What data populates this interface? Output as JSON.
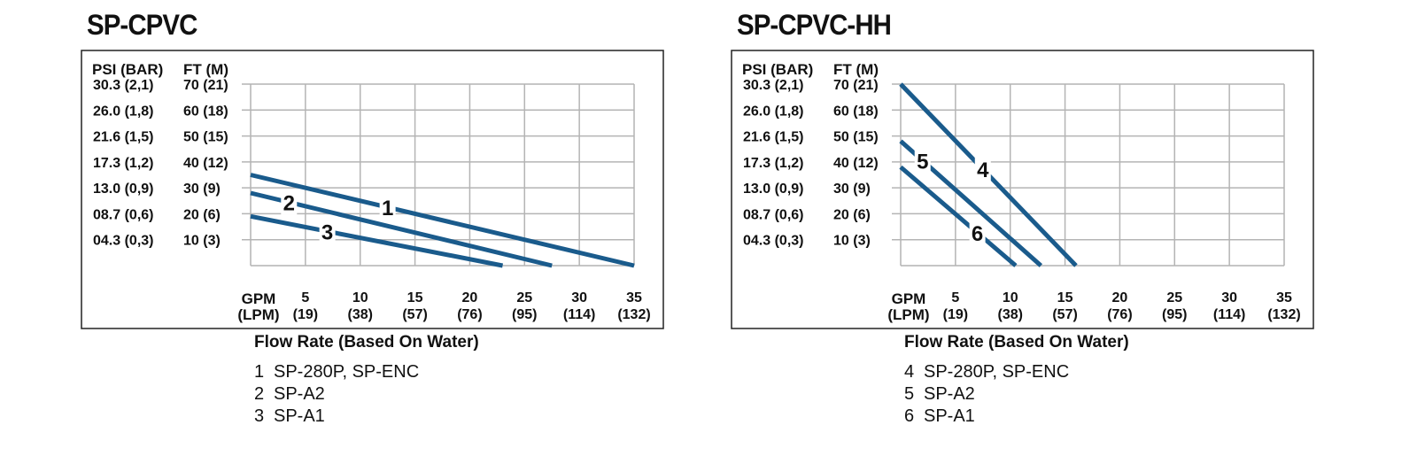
{
  "colors": {
    "line": "#1a5b8c",
    "grid": "#b4b4b4",
    "frame": "#222222"
  },
  "axes": {
    "left_header": "PSI (BAR)",
    "right_header": "FT (M)",
    "y_left_labels": [
      "30.3 (2,1)",
      "26.0 (1,8)",
      "21.6 (1,5)",
      "17.3 (1,2)",
      "13.0 (0,9)",
      "08.7 (0,6)",
      "04.3 (0,3)"
    ],
    "y_right_labels": [
      "70 (21)",
      "60 (18)",
      "50 (15)",
      "40 (12)",
      "30 (9)",
      "20 (6)",
      "10 (3)"
    ],
    "x_unit_top": "GPM",
    "x_unit_bottom": "(LPM)",
    "x_top_labels": [
      "5",
      "10",
      "15",
      "20",
      "25",
      "30",
      "35"
    ],
    "x_bottom_labels": [
      "(19)",
      "(38)",
      "(57)",
      "(76)",
      "(95)",
      "(114)",
      "(132)"
    ]
  },
  "chart_data": [
    {
      "type": "line",
      "title": "SP-CPVC",
      "xlabel": "Flow Rate (Based On Water)",
      "ylabel": "FT (M)",
      "x_ticks": [
        5,
        10,
        15,
        20,
        25,
        30,
        35
      ],
      "y_ticks": [
        10,
        20,
        30,
        40,
        50,
        60,
        70
      ],
      "xlim": [
        0,
        35
      ],
      "ylim": [
        0,
        70
      ],
      "grid": true,
      "series": [
        {
          "label": "1",
          "name": "SP-280P, SP-ENC",
          "x": [
            0,
            35
          ],
          "y": [
            35,
            0
          ],
          "label_at": 12.5
        },
        {
          "label": "2",
          "name": "SP-A2",
          "x": [
            0,
            27.5
          ],
          "y": [
            28,
            0
          ],
          "label_at": 3.5
        },
        {
          "label": "3",
          "name": "SP-A1",
          "x": [
            0,
            23
          ],
          "y": [
            19,
            0
          ],
          "label_at": 7
        }
      ]
    },
    {
      "type": "line",
      "title": "SP-CPVC-HH",
      "xlabel": "Flow Rate (Based On Water)",
      "ylabel": "FT (M)",
      "x_ticks": [
        5,
        10,
        15,
        20,
        25,
        30,
        35
      ],
      "y_ticks": [
        10,
        20,
        30,
        40,
        50,
        60,
        70
      ],
      "xlim": [
        0,
        35
      ],
      "ylim": [
        0,
        70
      ],
      "grid": true,
      "series": [
        {
          "label": "4",
          "name": "SP-280P, SP-ENC",
          "x": [
            0,
            16
          ],
          "y": [
            70,
            0
          ],
          "label_at": 7.5
        },
        {
          "label": "5",
          "name": "SP-A2",
          "x": [
            0,
            12.8
          ],
          "y": [
            48,
            0
          ],
          "label_at": 2
        },
        {
          "label": "6",
          "name": "SP-A1",
          "x": [
            0,
            10.5
          ],
          "y": [
            38,
            0
          ],
          "label_at": 7
        }
      ]
    }
  ]
}
